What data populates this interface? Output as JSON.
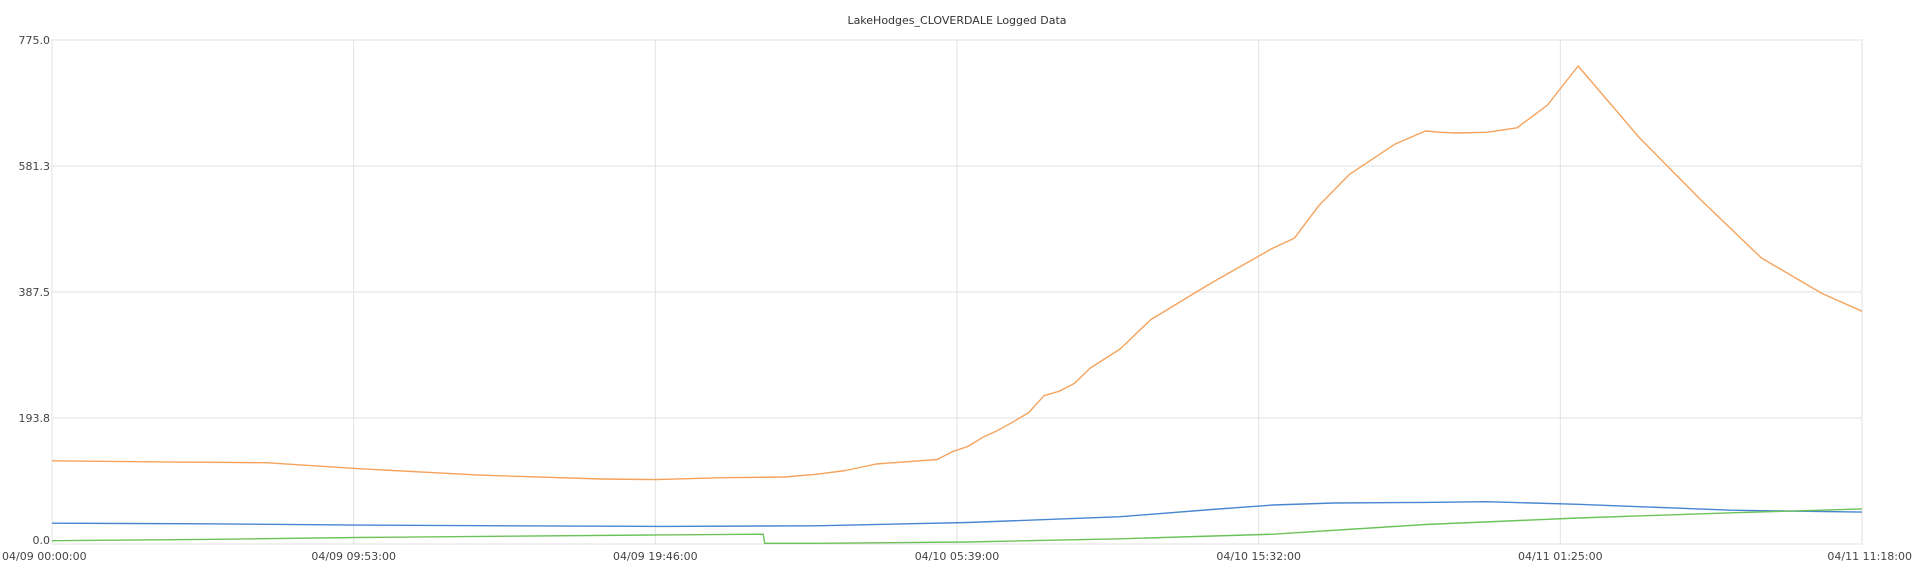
{
  "chart_data": {
    "type": "line",
    "title": "LakeHodges_CLOVERDALE Logged Data",
    "xlabel": "",
    "ylabel": "",
    "ylim": [
      0,
      775
    ],
    "y_ticks": [
      "0.0",
      "193.8",
      "387.5",
      "581.3",
      "775.0"
    ],
    "x_ticks": [
      "04/09 00:00:00",
      "04/09 09:53:00",
      "04/09 19:46:00",
      "04/10 05:39:00",
      "04/10 15:32:00",
      "04/11 01:25:00",
      "04/11 11:18:00"
    ],
    "xlim_hours": [
      0,
      59.3
    ],
    "grid": true,
    "legend": "none",
    "series": [
      {
        "color": "#f5a35c",
        "x": [
          0,
          2,
          4,
          7,
          10,
          14,
          18,
          19.8,
          22,
          24,
          25,
          26,
          27,
          29,
          29.5,
          30,
          30.5,
          31,
          31.5,
          32,
          32.5,
          33,
          33.5,
          34,
          35,
          36,
          38,
          40,
          40.7,
          41.5,
          42.5,
          44,
          45,
          45.5,
          46,
          47,
          48,
          49,
          50,
          52,
          54,
          56,
          58,
          59.3
        ],
        "y": [
          128,
          127,
          126,
          125,
          116,
          106,
          100,
          99,
          102,
          103,
          107,
          113,
          123,
          130,
          142,
          150,
          164,
          175,
          188,
          202,
          228,
          235,
          247,
          270,
          300,
          345,
          402,
          455,
          470,
          520,
          568,
          615,
          635,
          633,
          632,
          633,
          640,
          675,
          735,
          625,
          530,
          440,
          385,
          358
        ]
      },
      {
        "color": "#4a86d0",
        "x": [
          0,
          5,
          10,
          15,
          20,
          25,
          30,
          35,
          38,
          40,
          42,
          45,
          47,
          50,
          55,
          59.3
        ],
        "y": [
          32,
          31,
          29,
          28,
          27,
          28,
          33,
          42,
          53,
          60,
          63,
          64,
          65,
          61,
          52,
          49
        ]
      },
      {
        "color": "#6cc25a",
        "x": [
          0,
          5,
          10,
          15,
          20,
          23.3,
          23.35,
          25,
          30,
          35,
          40,
          45,
          50,
          55,
          59.3
        ],
        "y": [
          5,
          7,
          10,
          12,
          14,
          15,
          1,
          1,
          3,
          8,
          15,
          30,
          40,
          48,
          54
        ]
      }
    ]
  }
}
